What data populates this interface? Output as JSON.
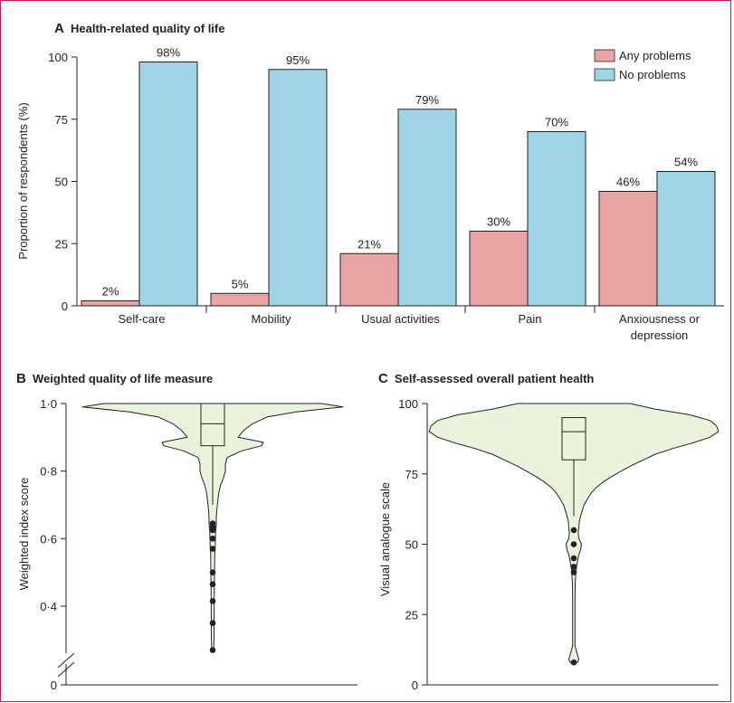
{
  "colors": {
    "frame": "#c2185b",
    "any_problems": "#e8a3a3",
    "no_problems": "#9fd4e6",
    "violin_fill": "#eaf4dd",
    "stroke": "#222222"
  },
  "chart_data": [
    {
      "id": "A",
      "type": "bar",
      "letter": "A",
      "title": "Health-related quality of life",
      "ylabel": "Proportion of respondents (%)",
      "ylim": [
        0,
        100
      ],
      "yticks": [
        "0",
        "25",
        "50",
        "75",
        "100"
      ],
      "ytick_values": [
        0,
        25,
        50,
        75,
        100
      ],
      "categories": [
        {
          "lines": [
            "Self-care"
          ]
        },
        {
          "lines": [
            "Mobility"
          ]
        },
        {
          "lines": [
            "Usual activities"
          ]
        },
        {
          "lines": [
            "Pain"
          ]
        },
        {
          "lines": [
            "Anxiousness or",
            "depression"
          ]
        }
      ],
      "series": [
        {
          "name": "Any problems",
          "values": [
            2,
            5,
            21,
            30,
            46
          ],
          "labels": [
            "2%",
            "5%",
            "21%",
            "30%",
            "46%"
          ]
        },
        {
          "name": "No problems",
          "values": [
            98,
            95,
            79,
            70,
            54
          ],
          "labels": [
            "98%",
            "95%",
            "79%",
            "70%",
            "54%"
          ]
        }
      ],
      "legend_position": "top-right",
      "grid": false
    },
    {
      "id": "B",
      "type": "violin",
      "letter": "B",
      "title": "Weighted quality of life measure",
      "ylabel": "Weighted index score",
      "ylim": [
        0.25,
        1.0
      ],
      "yticks": [
        "0·4",
        "0·6",
        "0·8",
        "1·0"
      ],
      "ytick_values": [
        0.4,
        0.6,
        0.8,
        1.0
      ],
      "zero_tick": "0",
      "box": {
        "q1": 0.875,
        "median": 0.94,
        "q3": 1.0,
        "whisker_low": 0.7,
        "whisker_high": 1.0
      },
      "outliers": [
        0.645,
        0.635,
        0.625,
        0.6,
        0.57,
        0.5,
        0.465,
        0.415,
        0.35,
        0.27
      ],
      "density": [
        [
          1.0,
          60
        ],
        [
          0.99,
          72
        ],
        [
          0.975,
          46
        ],
        [
          0.96,
          30
        ],
        [
          0.94,
          22
        ],
        [
          0.92,
          17
        ],
        [
          0.9,
          14
        ],
        [
          0.885,
          28
        ],
        [
          0.875,
          27
        ],
        [
          0.86,
          16
        ],
        [
          0.84,
          8
        ],
        [
          0.82,
          7
        ],
        [
          0.8,
          7
        ],
        [
          0.78,
          6
        ],
        [
          0.76,
          4.5
        ],
        [
          0.74,
          3.5
        ],
        [
          0.72,
          3
        ],
        [
          0.7,
          2.6
        ],
        [
          0.68,
          2.2
        ],
        [
          0.66,
          2
        ],
        [
          0.64,
          2
        ],
        [
          0.62,
          1.6
        ],
        [
          0.6,
          1.5
        ],
        [
          0.58,
          1.4
        ],
        [
          0.55,
          1.1
        ],
        [
          0.5,
          1
        ],
        [
          0.45,
          0.9
        ],
        [
          0.4,
          0.8
        ],
        [
          0.35,
          0.8
        ],
        [
          0.3,
          0.7
        ],
        [
          0.27,
          0.5
        ]
      ]
    },
    {
      "id": "C",
      "type": "violin",
      "letter": "C",
      "title": "Self-assessed overall patient health",
      "ylabel": "Visual analogue scale",
      "ylim": [
        0,
        100
      ],
      "yticks": [
        "0",
        "25",
        "50",
        "75",
        "100"
      ],
      "ytick_values": [
        0,
        25,
        50,
        75,
        100
      ],
      "box": {
        "q1": 80,
        "median": 90,
        "q3": 95,
        "whisker_low": 60,
        "whisker_high": 100
      },
      "outliers": [
        55,
        50,
        45,
        42,
        40,
        8
      ],
      "density": [
        [
          100,
          33
        ],
        [
          98,
          48
        ],
        [
          96,
          68
        ],
        [
          94,
          80
        ],
        [
          92,
          84
        ],
        [
          90,
          85
        ],
        [
          88,
          80
        ],
        [
          86,
          70
        ],
        [
          84,
          58
        ],
        [
          82,
          48
        ],
        [
          80,
          41
        ],
        [
          78,
          34
        ],
        [
          76,
          28
        ],
        [
          74,
          22
        ],
        [
          72,
          17
        ],
        [
          70,
          13
        ],
        [
          68,
          10
        ],
        [
          66,
          8
        ],
        [
          64,
          6
        ],
        [
          62,
          5
        ],
        [
          60,
          4
        ],
        [
          58,
          3.2
        ],
        [
          56,
          3
        ],
        [
          54,
          2.6
        ],
        [
          52,
          3
        ],
        [
          50,
          4.5
        ],
        [
          48,
          4
        ],
        [
          46,
          2.8
        ],
        [
          44,
          2.2
        ],
        [
          42,
          1.6
        ],
        [
          40,
          1.2
        ],
        [
          36,
          0.8
        ],
        [
          30,
          0.7
        ],
        [
          20,
          0.7
        ],
        [
          14,
          0.7
        ],
        [
          11,
          2
        ],
        [
          9,
          3
        ],
        [
          8,
          2
        ]
      ]
    }
  ]
}
